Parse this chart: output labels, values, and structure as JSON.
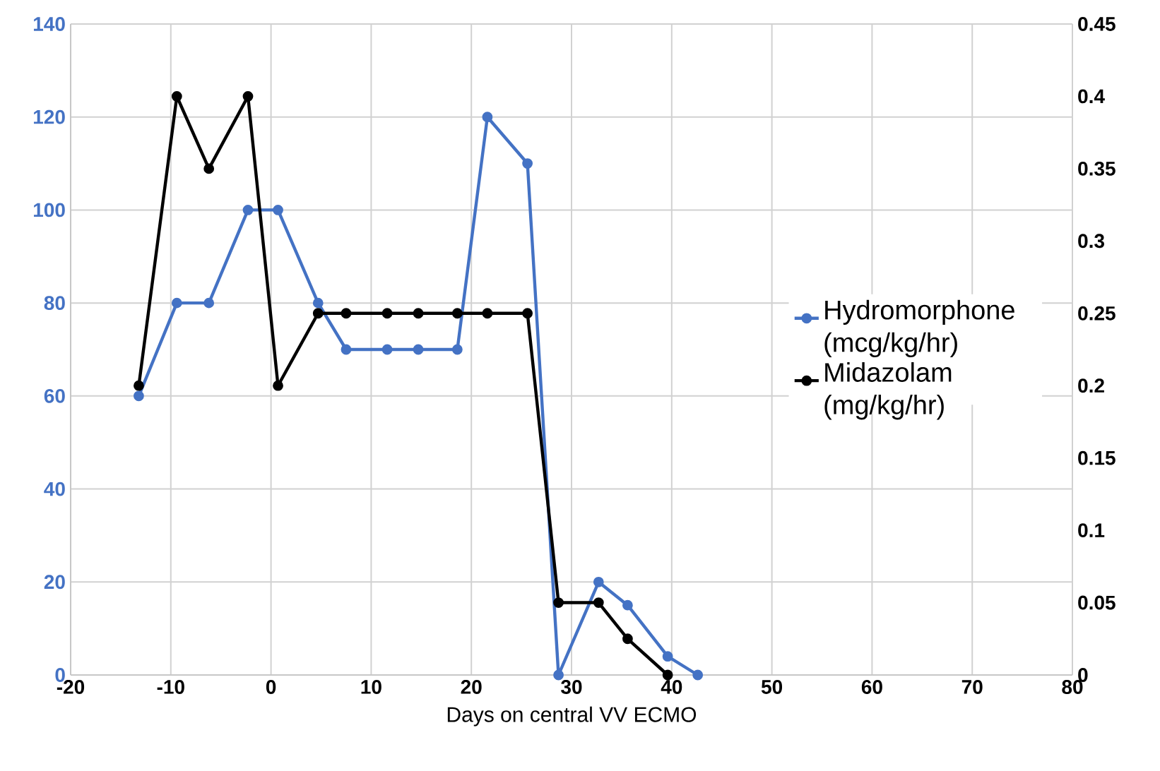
{
  "chart_data": {
    "type": "line",
    "xlabel": "Days on central VV ECMO",
    "xlim": [
      -20,
      80
    ],
    "xticks": [
      -20,
      -10,
      0,
      10,
      20,
      30,
      40,
      50,
      60,
      70,
      80
    ],
    "ylim": [
      0,
      140
    ],
    "yticks": [
      0,
      20,
      40,
      60,
      80,
      100,
      120,
      140
    ],
    "y2lim": [
      0,
      0.45
    ],
    "y2ticks": [
      0,
      0.05,
      0.1,
      0.15,
      0.2,
      0.25,
      0.3,
      0.35,
      0.4,
      0.45
    ],
    "grid": true,
    "legend": "right",
    "marker": "circle",
    "line_style": "solid",
    "series": [
      {
        "name": "Hydromorphone (mcg/kg/hr)",
        "color": "#4472c4",
        "x": [
          -13.2,
          -9.4,
          -6.2,
          -2.3,
          0.7,
          4.7,
          7.5,
          11.6,
          14.7,
          18.6,
          21.6,
          25.6,
          28.7,
          32.7,
          35.6,
          39.6,
          42.6
        ],
        "values": [
          60,
          80,
          80,
          100,
          100,
          80,
          70,
          70,
          70,
          70,
          120,
          110,
          0,
          20,
          15,
          4,
          0
        ]
      },
      {
        "name": "Midazolam (mg/kg/hr)",
        "color": "#000000",
        "axis": "y2",
        "x": [
          -13.2,
          -9.4,
          -6.2,
          -2.3,
          0.7,
          4.7,
          7.5,
          11.6,
          14.7,
          18.6,
          21.6,
          25.6,
          28.7,
          32.7,
          35.6,
          39.6
        ],
        "values": [
          0.2,
          0.4,
          0.35,
          0.4,
          0.2,
          0.25,
          0.25,
          0.25,
          0.25,
          0.25,
          0.25,
          0.25,
          0.05,
          0.05,
          0.025,
          0
        ]
      }
    ]
  }
}
